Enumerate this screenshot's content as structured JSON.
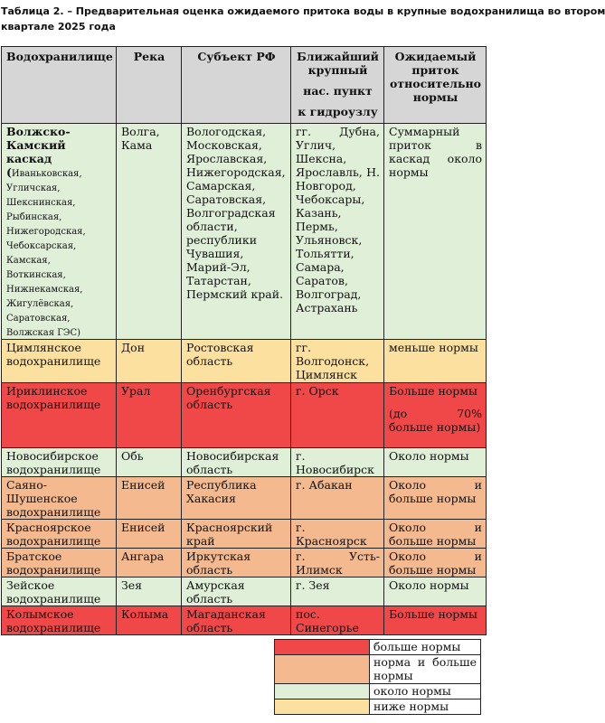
{
  "caption": {
    "line1": "Таблица 2. – Предварительная оценка ожидаемого притока воды в крупные водохранилища во втором",
    "line2": "квартале 2025 года"
  },
  "colors": {
    "above": "#f04848",
    "norm_and_above": "#f4b98e",
    "about": "#e0efd8",
    "below": "#fce0a0",
    "header": "#d6d6d6"
  },
  "table": {
    "headers": {
      "reservoir": "Водохранилище",
      "river": "Река",
      "subject": "Субъект РФ",
      "city_l1": "Ближайший крупный",
      "city_l2": "нас. пункт",
      "city_l3": "к гидроузлу",
      "inflow": "Ожидаемый приток относительно нормы"
    },
    "volga": {
      "name_bold": "Волжско-Камский каскад",
      "name_paren": "(",
      "sub": "Иваньковская, Угличская, Шекснинская, Рыбинская, Нижегородская, Чебоксарская, Камская, Воткинская, Нижнекамская, Жигулёвская, Саратовская, Волжская ГЭС)",
      "river": "Волга, Кама",
      "subject": "Вологодская, Московская, Ярославская, Нижегородская, Самарская, Саратовская, Волгоградская области, республики Чувашия, Марий-Эл, Татарстан, Пермский край.",
      "city": "гг. Дубна, Углич, Шексна, Ярославль, Н. Новгород, Чебоксары, Казань, Пермь, Ульяновск, Тольятти, Самара, Саратов, Волгоград, Астрахань",
      "inflow": "Суммарный приток в каскад около нормы"
    },
    "tsim": {
      "name": "Цимлянское водохранилище",
      "river": "Дон",
      "subject": "Ростовская область",
      "city": "гг. Волгодонск, Цимлянск",
      "inflow": "меньше нормы"
    },
    "irikla": {
      "name": "Ириклинское водохранилище",
      "river": "Урал",
      "subject": "Оренбургская область",
      "city": "г. Орск",
      "inflow": "Больше нормы",
      "inflow_note": "(до 70% больше нормы)"
    },
    "novosib": {
      "name": "Новосибирское водохранилище",
      "river": "Обь",
      "subject": "Новосибирская область",
      "city": "г. Новосибирск",
      "inflow": "Около нормы"
    },
    "sayano": {
      "name": "Саяно-Шушенское водохранилище",
      "river": "Енисей",
      "subject": "Республика Хакасия",
      "city": "г. Абакан",
      "inflow": "Около и больше нормы"
    },
    "krasnoyarsk": {
      "name": "Красноярское водохранилище",
      "river": "Енисей",
      "subject": "Красноярский край",
      "city": "г. Красноярск",
      "inflow": "Около и больше нормы"
    },
    "bratsk": {
      "name": "Братское водохранилище",
      "river": "Ангара",
      "subject": "Иркутская область",
      "city": "г. Усть-Илимск",
      "inflow": "Около и больше нормы"
    },
    "zeya": {
      "name": "Зейское водохранилище",
      "river": "Зея",
      "subject": "Амурская область",
      "city": "г. Зея",
      "inflow": "Около нормы"
    },
    "kolyma": {
      "name": "Колымское водохранилище",
      "river": "Колыма",
      "subject": "Магаданская область",
      "city": "пос. Синегорье",
      "inflow": "Больше нормы"
    }
  },
  "legend": {
    "above": "больше нормы",
    "norm_and_above": "норма и больше нормы",
    "about": "около нормы",
    "below": "ниже нормы"
  }
}
